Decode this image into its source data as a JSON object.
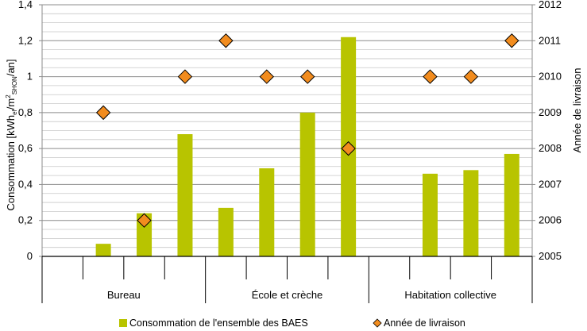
{
  "chart_data": {
    "type": "bar",
    "y_axis_label": {
      "main": "Consommation [kWh",
      "sub1": "ef",
      "mid": "/m",
      "sup": "2",
      "sub2": "SHON",
      "end": "/an]"
    },
    "y2_axis_label": "Année de livraison",
    "ylim": [
      0,
      1.4
    ],
    "y_ticks": [
      "0",
      "0,2",
      "0,4",
      "0,6",
      "0,8",
      "1",
      "1,2",
      "1,4"
    ],
    "y2lim": [
      2005,
      2012
    ],
    "y2_ticks": [
      "2005",
      "2006",
      "2007",
      "2008",
      "2009",
      "2010",
      "2011",
      "2012"
    ],
    "grid": true,
    "legend_position": "bottom",
    "groups": [
      {
        "label": "Bureau",
        "bars": [
          0.07,
          0.24,
          0.68
        ],
        "markers": [
          2009,
          2006,
          2010
        ]
      },
      {
        "label": "École et crèche",
        "bars": [
          0.27,
          0.49,
          0.8,
          1.22
        ],
        "markers": [
          2011,
          2010,
          2010,
          2008
        ]
      },
      {
        "label": "Habitation collective",
        "bars": [
          0.46,
          0.48,
          0.57
        ],
        "markers": [
          2010,
          2010,
          2011
        ]
      }
    ],
    "series": [
      {
        "name": "Consommation de l'ensemble des BAES",
        "type": "bar",
        "color": "#b8c400"
      },
      {
        "name": "Année de livraison",
        "type": "marker",
        "color": "#f28c1e"
      }
    ]
  }
}
